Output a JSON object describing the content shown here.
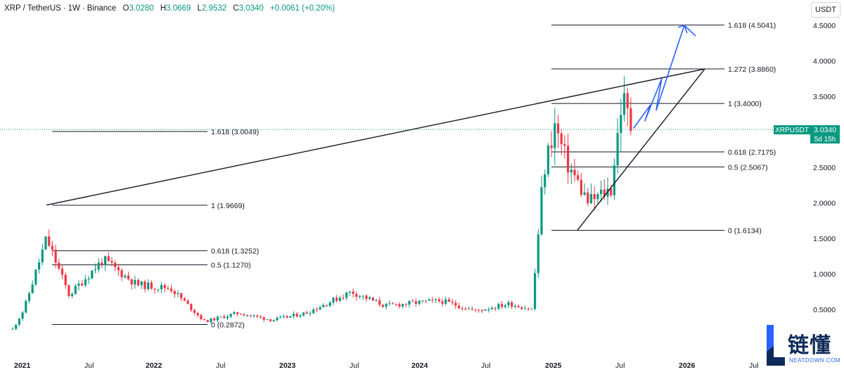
{
  "header": {
    "symbol": "XRP",
    "sep1": "/",
    "quote": "TetherUS",
    "sep2": "·",
    "interval": "1W",
    "sep3": "·",
    "exchange": "Binance",
    "open_label": "O",
    "open": "3.0280",
    "high_label": "H",
    "high": "3.0669",
    "low_label": "L",
    "low": "2.9532",
    "close_label": "C",
    "close": "3.0340",
    "change": "+0.0061 (+0.20%)"
  },
  "currency_button": "USDT",
  "price_tag": {
    "symbol": "XRPUSDT",
    "price": "3.0340",
    "countdown": "5d 15h"
  },
  "logo": {
    "chinese": "链懂",
    "domain": "NEATDOWN.COM"
  },
  "colors": {
    "up": "#089981",
    "down": "#f23645",
    "projection": "#2962ff",
    "line": "#131722",
    "grid_dotted": "#089981"
  },
  "chart_data": {
    "type": "candlestick",
    "interval": "1W",
    "ylim": [
      0.2,
      4.7
    ],
    "y_ticks": [
      "4.5000",
      "4.0000",
      "3.5000",
      "3.0000",
      "2.5000",
      "2.0000",
      "1.5000",
      "1.0000",
      "0.5000"
    ],
    "x_ticks": [
      "2021",
      "Jul",
      "2022",
      "Jul",
      "2023",
      "Jul",
      "2024",
      "Jul",
      "2025",
      "Jul",
      "2026",
      "Jul"
    ],
    "fib_set_1": [
      {
        "label": "1.618 (3.0049)",
        "price": 3.0049
      },
      {
        "label": "1 (1.9669)",
        "price": 1.9669
      },
      {
        "label": "0.618 (1.3252)",
        "price": 1.3252
      },
      {
        "label": "0.5 (1.1270)",
        "price": 1.127
      },
      {
        "label": "0 (0.2872)",
        "price": 0.2872
      }
    ],
    "fib_set_2": [
      {
        "label": "1.618 (4.5041)",
        "price": 4.5041
      },
      {
        "label": "1.272 (3.8860)",
        "price": 3.886
      },
      {
        "label": "1 (3.4000)",
        "price": 3.4
      },
      {
        "label": "0.618 (2.7175)",
        "price": 2.7175
      },
      {
        "label": "0.5 (2.5067)",
        "price": 2.5067
      },
      {
        "label": "0 (1.6134)",
        "price": 1.6134
      }
    ],
    "current_price": 3.034,
    "trend_lines": [
      {
        "from": [
          "2021-04",
          1.97
        ],
        "to": [
          "2026-02",
          3.886
        ]
      },
      {
        "from": [
          "2025-03",
          1.61
        ],
        "to": [
          "2026-02",
          3.886
        ]
      }
    ],
    "projection_path": [
      [
        "2025-08",
        3.05
      ],
      [
        "2025-09",
        3.38
      ],
      [
        "2025-09",
        3.15
      ],
      [
        "2025-10",
        3.75
      ],
      [
        "2025-10",
        3.3
      ],
      [
        "2025-12",
        4.5
      ],
      [
        "2026-01",
        4.35
      ]
    ],
    "price_path": [
      [
        "2021-01",
        0.22
      ],
      [
        "2021-02",
        0.5
      ],
      [
        "2021-04",
        1.5
      ],
      [
        "2021-06",
        0.7
      ],
      [
        "2021-09",
        1.2
      ],
      [
        "2021-12",
        0.85
      ],
      [
        "2022-03",
        0.8
      ],
      [
        "2022-06",
        0.33
      ],
      [
        "2022-09",
        0.45
      ],
      [
        "2022-12",
        0.35
      ],
      [
        "2023-03",
        0.45
      ],
      [
        "2023-07",
        0.75
      ],
      [
        "2023-10",
        0.55
      ],
      [
        "2024-01",
        0.6
      ],
      [
        "2024-03",
        0.62
      ],
      [
        "2024-06",
        0.48
      ],
      [
        "2024-09",
        0.58
      ],
      [
        "2024-11",
        0.5
      ],
      [
        "2024-12",
        2.4
      ],
      [
        "2025-01",
        3.1
      ],
      [
        "2025-02",
        2.6
      ],
      [
        "2025-04",
        2.0
      ],
      [
        "2025-06",
        2.2
      ],
      [
        "2025-07",
        3.5
      ],
      [
        "2025-08",
        2.95
      ]
    ]
  }
}
